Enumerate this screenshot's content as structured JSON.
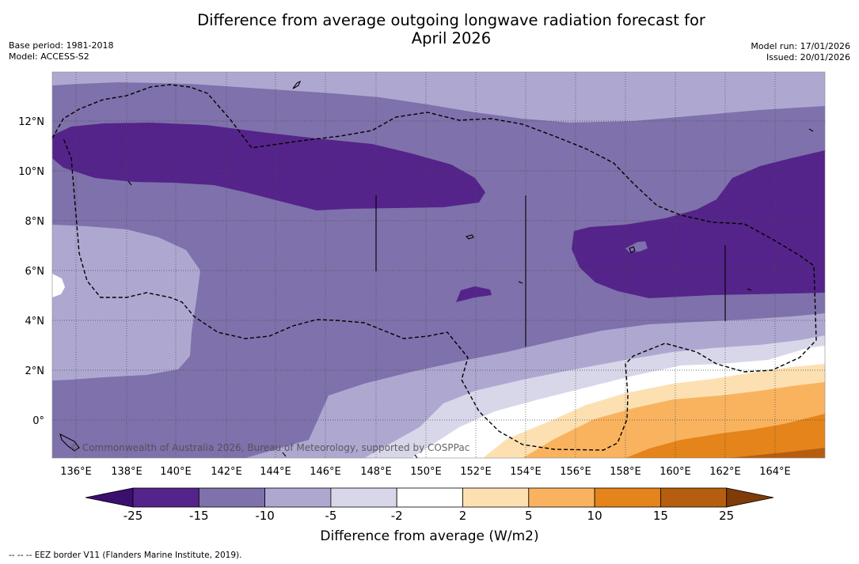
{
  "title_line1": "Difference from average outgoing longwave radiation forecast for",
  "title_line2": "April 2026",
  "base_period": "Base period: 1981-2018",
  "model": "Model: ACCESS-S2",
  "model_run": "Model run: 17/01/2026",
  "issued": "Issued: 20/01/2026",
  "copyright": "© Commonwealth of Australia 2026, Bureau of Meteorology, supported by COSPPac",
  "footer": "-- -- -- EEZ border V11 (Flanders Marine Institute, 2019).",
  "colorbar_title": "Difference from average (W/m2)",
  "chart_data": {
    "type": "heatmap",
    "variable": "Difference from average outgoing longwave radiation",
    "units": "W/m2",
    "period": "April 2026",
    "x_range_deg": [
      135,
      166
    ],
    "y_range_deg": [
      -1.5,
      14
    ],
    "x_ticks": [
      "136°E",
      "138°E",
      "140°E",
      "142°E",
      "144°E",
      "146°E",
      "148°E",
      "150°E",
      "152°E",
      "154°E",
      "156°E",
      "158°E",
      "160°E",
      "162°E",
      "164°E"
    ],
    "y_ticks": [
      "12°N",
      "10°N",
      "8°N",
      "6°N",
      "4°N",
      "2°N",
      "0°"
    ],
    "levels": [
      "-25",
      "-15",
      "-10",
      "-5",
      "-2",
      "2",
      "5",
      "10",
      "15",
      "25"
    ],
    "colors": {
      "below_-25": "#3b0f6f",
      "-25_to_-15": "#54248a",
      "-15_to_-10": "#7f71ab",
      "-10_to_-5": "#aea8d1",
      "-5_to_-2": "#d8d7ea",
      "-2_to_2": "#ffffff",
      "2_to_5": "#fde0b2",
      "5_to_10": "#f9b35f",
      "10_to_15": "#e4841a",
      "15_to_25": "#b65e0f",
      "above_25": "#7f3b08"
    }
  }
}
